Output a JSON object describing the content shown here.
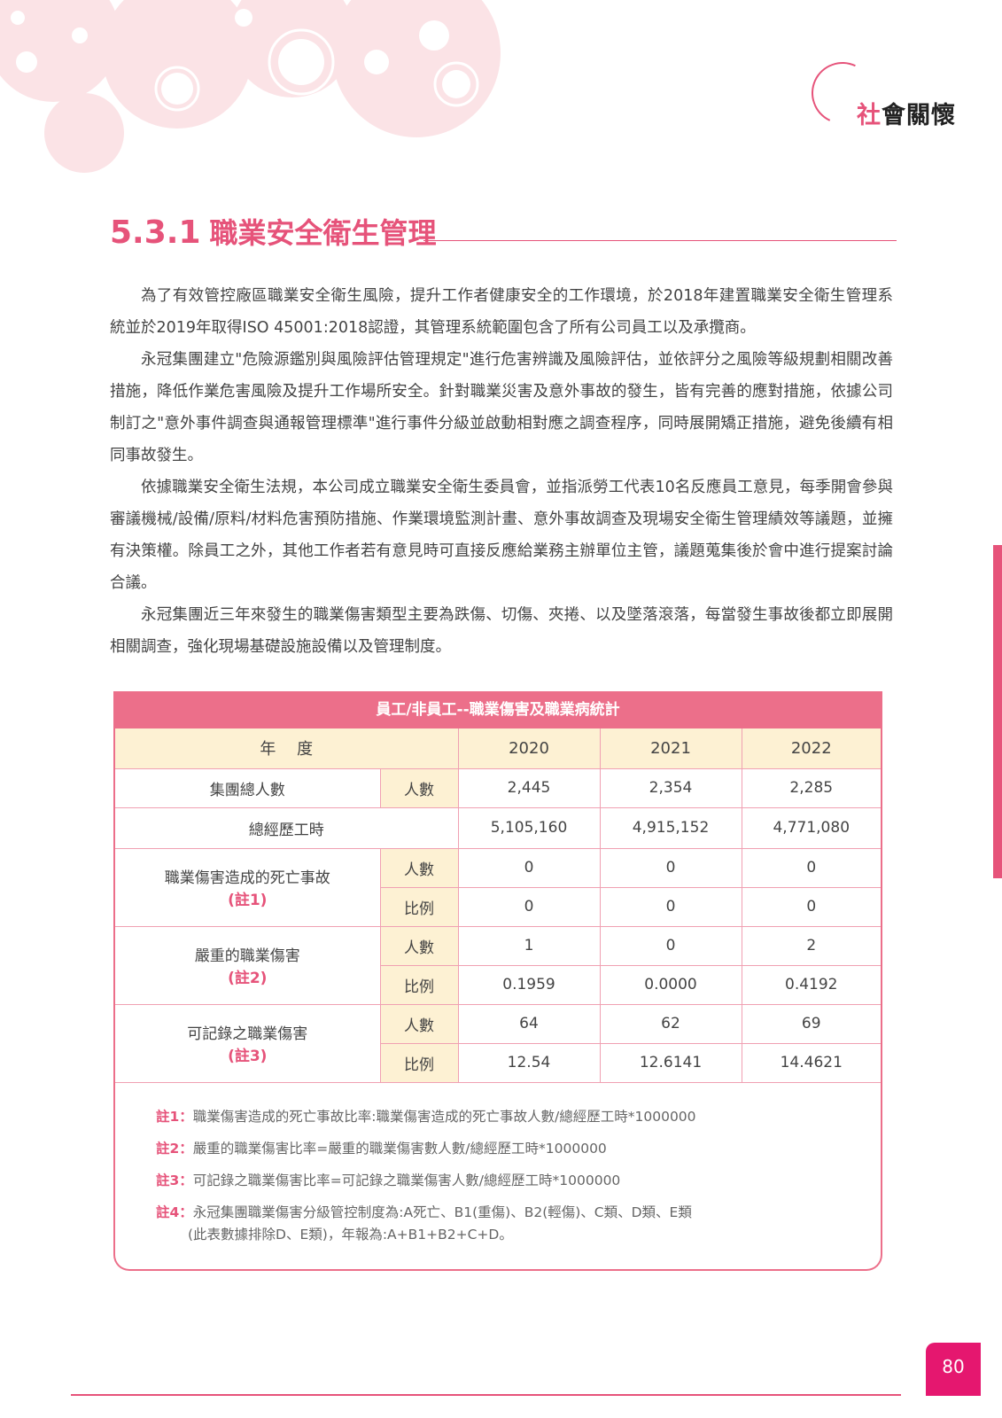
{
  "header": {
    "section_first_char": "社",
    "section_rest": "會關懷"
  },
  "title": {
    "number": "5.3.1",
    "text": "職業安全衛生管理"
  },
  "paragraphs": [
    "為了有效管控廠區職業安全衛生風險，提升工作者健康安全的工作環境，於2018年建置職業安全衛生管理系統並於2019年取得ISO 45001:2018認證，其管理系統範圍包含了所有公司員工以及承攬商。",
    "永冠集團建立\"危險源鑑別與風險評估管理規定\"進行危害辨識及風險評估，並依評分之風險等級規劃相關改善措施，降低作業危害風險及提升工作場所安全。針對職業災害及意外事故的發生，皆有完善的應對措施，依據公司制訂之\"意外事件調查與通報管理標準\"進行事件分級並啟動相對應之調查程序，同時展開矯正措施，避免後續有相同事故發生。",
    "依據職業安全衛生法規，本公司成立職業安全衛生委員會，並指派勞工代表10名反應員工意見，每季開會參與審議機械/設備/原料/材料危害預防措施、作業環境監測計畫、意外事故調查及現場安全衛生管理績效等議題，並擁有決策權。除員工之外，其他工作者若有意見時可直接反應給業務主辦單位主管，議題蒐集後於會中進行提案討論合議。",
    "永冠集團近三年來發生的職業傷害類型主要為跌傷、切傷、夾捲、以及墜落滾落，每當發生事故後都立即展開相關調查，強化現場基礎設施設備以及管理制度。"
  ],
  "table": {
    "title": "員工/非員工--職業傷害及職業病統計",
    "year_label": "年　 度",
    "years": [
      "2020",
      "2021",
      "2022"
    ],
    "headcount": {
      "label": "集團總人數",
      "unit": "人數",
      "values": [
        "2,445",
        "2,354",
        "2,285"
      ]
    },
    "hours": {
      "label": "總經歷工時",
      "values": [
        "5,105,160",
        "4,915,152",
        "4,771,080"
      ]
    },
    "groups": [
      {
        "label": "職業傷害造成的死亡事故",
        "note": "(註1)",
        "count_unit": "人數",
        "counts": [
          "0",
          "0",
          "0"
        ],
        "rate_unit": "比例",
        "rates": [
          "0",
          "0",
          "0"
        ]
      },
      {
        "label": "嚴重的職業傷害",
        "note": "(註2)",
        "count_unit": "人數",
        "counts": [
          "1",
          "0",
          "2"
        ],
        "rate_unit": "比例",
        "rates": [
          "0.1959",
          "0.0000",
          "0.4192"
        ]
      },
      {
        "label": "可記錄之職業傷害",
        "note": "(註3)",
        "count_unit": "人數",
        "counts": [
          "64",
          "62",
          "69"
        ],
        "rate_unit": "比例",
        "rates": [
          "12.54",
          "12.6141",
          "14.4621"
        ]
      }
    ],
    "notes": [
      {
        "label": "註1：",
        "text": "職業傷害造成的死亡事故比率:職業傷害造成的死亡事故人數/總經歷工時*1000000"
      },
      {
        "label": "註2：",
        "text": "嚴重的職業傷害比率=嚴重的職業傷害數人數/總經歷工時*1000000"
      },
      {
        "label": "註3：",
        "text": "可記錄之職業傷害比率=可記錄之職業傷害人數/總經歷工時*1000000"
      },
      {
        "label": "註4：",
        "text": "永冠集團職業傷害分級管控制度為:A死亡、B1(重傷)、B2(輕傷)、C類、D類、E類",
        "cont": "(此表數據排除D、E類)，年報為:A+B1+B2+C+D。"
      }
    ]
  },
  "page_number": "80",
  "colors": {
    "accent": "#e6537a",
    "table_header": "#ec6f8a",
    "cream": "#fdf1d3",
    "page_badge": "#e5176f"
  }
}
